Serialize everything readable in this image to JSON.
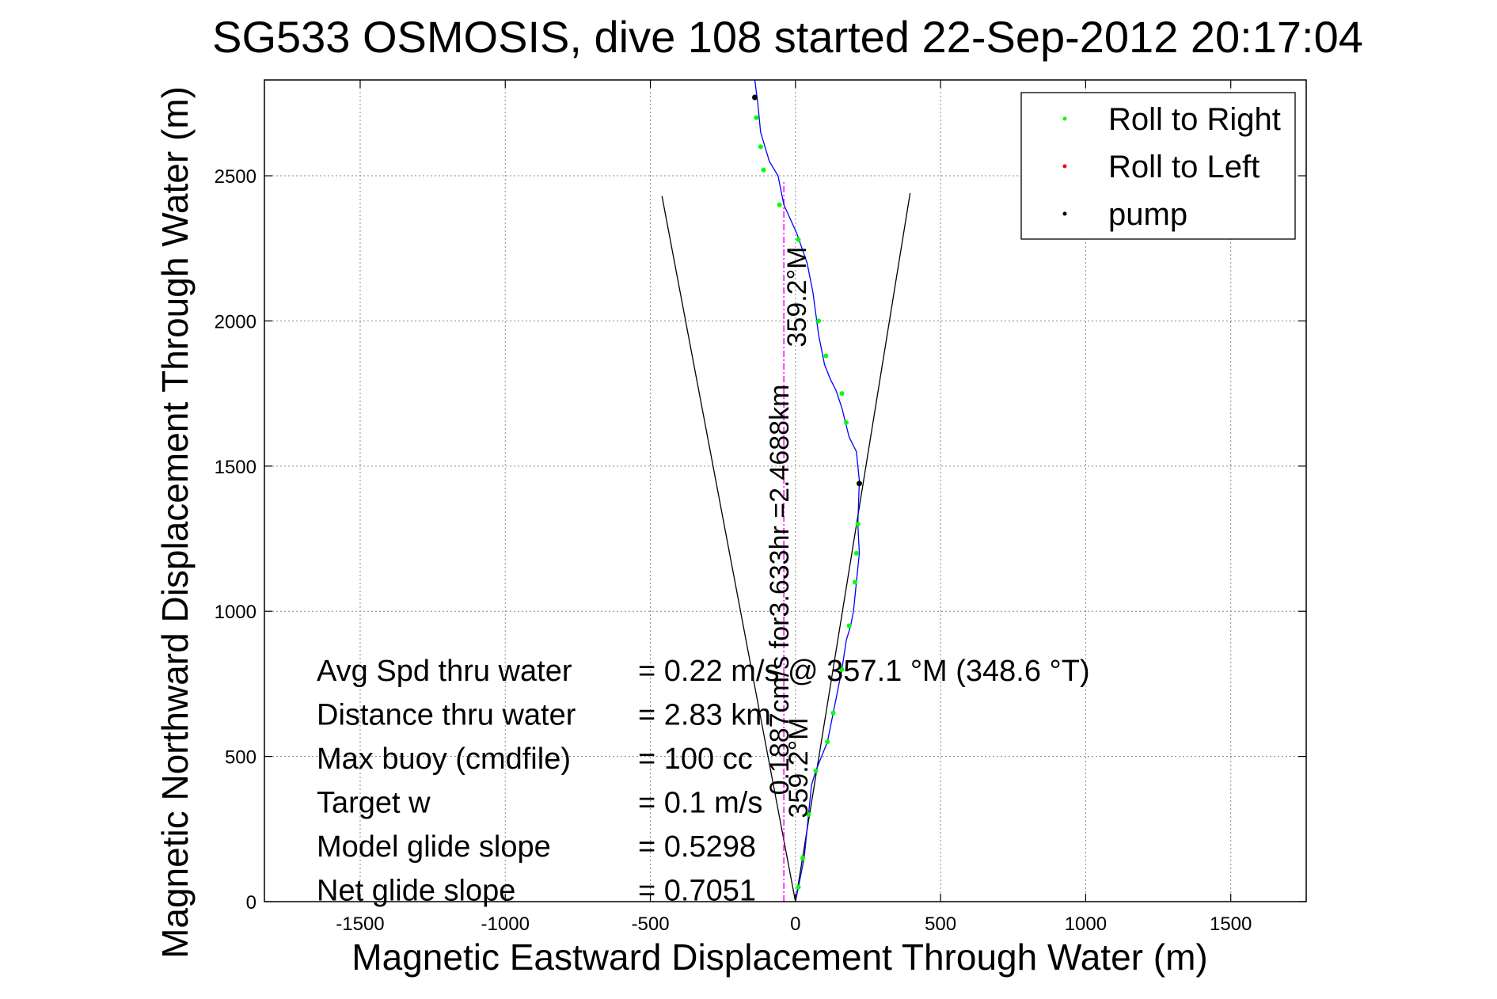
{
  "chart_data": {
    "type": "scatter",
    "title": "SG533 OSMOSIS, dive 108 started 22-Sep-2012 20:17:04",
    "xlabel": "Magnetic Eastward Displacement Through Water (m)",
    "ylabel": "Magnetic Northward Displacement Through Water (m)",
    "xlim": [
      -1830,
      1760
    ],
    "ylim": [
      0,
      2830
    ],
    "x_ticks": [
      -1500,
      -1000,
      -500,
      0,
      500,
      1000,
      1500
    ],
    "y_ticks": [
      0,
      500,
      1000,
      1500,
      2000,
      2500
    ],
    "grid": true,
    "legend_position": "top-right",
    "legend": [
      {
        "label": "Roll to Right",
        "color": "#00ff00"
      },
      {
        "label": "Roll to Left",
        "color": "#ff0000"
      },
      {
        "label": "pump",
        "color": "#000000"
      }
    ],
    "colors": {
      "track": "#0000ff",
      "cone": "#000000",
      "heading_line": "#ff00ff",
      "roll_right": "#00ff00",
      "roll_left": "#ff0000",
      "pump": "#000000"
    },
    "track": [
      [
        0,
        0
      ],
      [
        10,
        50
      ],
      [
        20,
        100
      ],
      [
        30,
        150
      ],
      [
        35,
        200
      ],
      [
        45,
        300
      ],
      [
        55,
        400
      ],
      [
        70,
        450
      ],
      [
        90,
        500
      ],
      [
        110,
        550
      ],
      [
        130,
        650
      ],
      [
        140,
        700
      ],
      [
        160,
        800
      ],
      [
        175,
        900
      ],
      [
        190,
        950
      ],
      [
        200,
        1000
      ],
      [
        210,
        1100
      ],
      [
        220,
        1200
      ],
      [
        215,
        1300
      ],
      [
        220,
        1450
      ],
      [
        210,
        1550
      ],
      [
        185,
        1600
      ],
      [
        160,
        1700
      ],
      [
        140,
        1760
      ],
      [
        120,
        1800
      ],
      [
        100,
        1850
      ],
      [
        80,
        1950
      ],
      [
        60,
        2100
      ],
      [
        40,
        2200
      ],
      [
        5,
        2300
      ],
      [
        -40,
        2400
      ],
      [
        -60,
        2500
      ],
      [
        -90,
        2550
      ],
      [
        -120,
        2650
      ],
      [
        -130,
        2750
      ],
      [
        -140,
        2830
      ]
    ],
    "roll_right_points": [
      [
        10,
        50
      ],
      [
        25,
        150
      ],
      [
        45,
        300
      ],
      [
        70,
        450
      ],
      [
        110,
        550
      ],
      [
        130,
        650
      ],
      [
        160,
        800
      ],
      [
        185,
        950
      ],
      [
        205,
        1100
      ],
      [
        210,
        1200
      ],
      [
        215,
        1300
      ],
      [
        175,
        1650
      ],
      [
        160,
        1750
      ],
      [
        105,
        1880
      ],
      [
        80,
        2000
      ],
      [
        10,
        2280
      ],
      [
        -55,
        2400
      ],
      [
        -110,
        2520
      ],
      [
        -120,
        2600
      ],
      [
        -135,
        2700
      ]
    ],
    "roll_left_points": [],
    "pump_points": [
      [
        220,
        1440
      ],
      [
        -140,
        2770
      ]
    ],
    "cone_lines": [
      {
        "x": [
          0,
          -460
        ],
        "y": [
          0,
          2430
        ]
      },
      {
        "x": [
          0,
          395
        ],
        "y": [
          0,
          2440
        ]
      }
    ],
    "heading_line": {
      "x": [
        -40,
        -40
      ],
      "y": [
        0,
        2480
      ]
    },
    "annotations": {
      "heading_upper": "359.2°M",
      "heading_lower": "359.2°M",
      "speed_time": "0.1887cm/s for3.633hr =2.4688km"
    },
    "stats": [
      {
        "label": "Avg Spd thru water",
        "value": "=  0.22 m/s @  357.1 °M (348.6 °T)"
      },
      {
        "label": "Distance thru water",
        "value": "=  2.83 km"
      },
      {
        "label": "Max buoy (cmdfile)",
        "value": "= 100 cc"
      },
      {
        "label": "Target w",
        "value": "= 0.1 m/s"
      },
      {
        "label": "Model glide slope",
        "value": "= 0.5298"
      },
      {
        "label": "Net glide slope",
        "value": "= 0.7051"
      }
    ]
  }
}
